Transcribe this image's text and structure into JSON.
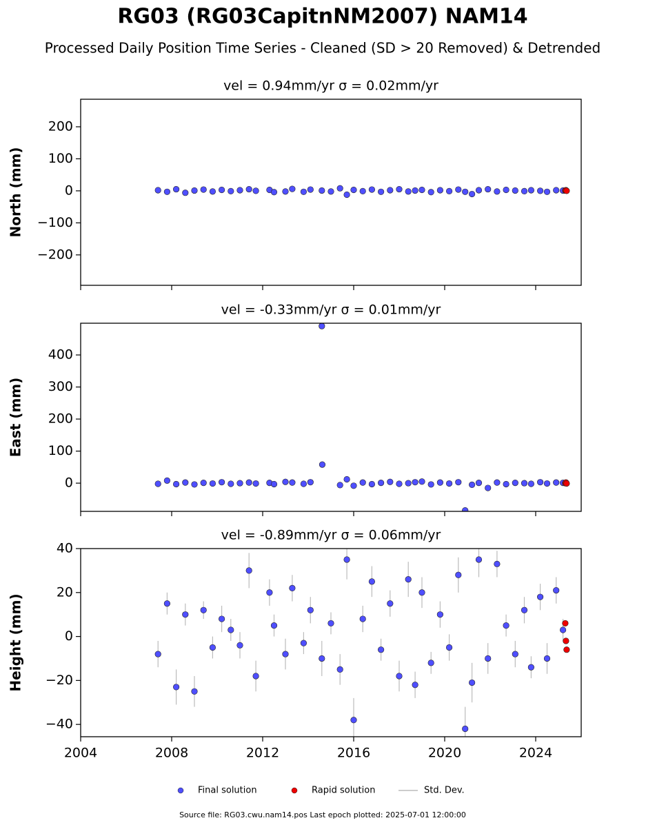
{
  "title": "RG03 (RG03CapitnNM2007) NAM14",
  "subtitle": "Processed Daily Position Time Series - Cleaned (SD > 20 Removed) & Detrended",
  "legend": [
    {
      "name": "Final solution",
      "color": "#4f4fff"
    },
    {
      "name": "Rapid solution",
      "color": "#ee0000"
    },
    {
      "name": "Std. Dev.",
      "color": "#bbbbbb"
    }
  ],
  "footer": "Source file: RG03.cwu.nam14.pos  Last epoch plotted: 2025-07-01 12:00:00",
  "chart_data": [
    {
      "type": "scatter",
      "title": "vel = 0.94mm/yr   σ = 0.02mm/yr",
      "y_label": "North (mm)",
      "xlim": [
        2004,
        2026
      ],
      "xticks": [
        2004,
        2008,
        2012,
        2016,
        2020,
        2024
      ],
      "show_xtick_labels": false,
      "ylim": [
        -295,
        286
      ],
      "yticks": [
        {
          "value": -200,
          "label": "−200"
        },
        {
          "value": -100,
          "label": "−100"
        },
        0,
        100,
        200
      ],
      "series": [
        {
          "x": [
            2007.4,
            2007.8,
            2008.2,
            2008.6,
            2009.0,
            2009.4,
            2009.8,
            2010.2,
            2010.6,
            2011.0,
            2011.4,
            2011.7,
            2012.3,
            2012.5,
            2013.0,
            2013.3,
            2013.8,
            2014.1,
            2014.6,
            2015.0,
            2015.4,
            2015.7,
            2016.0,
            2016.4,
            2016.8,
            2017.2,
            2017.6,
            2018.0,
            2018.4,
            2018.7,
            2019.0,
            2019.4,
            2019.8,
            2020.2,
            2020.6,
            2020.9,
            2021.2,
            2021.5,
            2021.9,
            2022.3,
            2022.7,
            2023.1,
            2023.5,
            2023.8,
            2024.2,
            2024.5,
            2024.9,
            2025.2
          ],
          "values": [
            2,
            -3,
            5,
            -6,
            1,
            4,
            -2,
            3,
            -1,
            2,
            5,
            0,
            3,
            -4,
            -2,
            6,
            -3,
            4,
            1,
            -2,
            8,
            -12,
            3,
            -1,
            4,
            -3,
            2,
            5,
            -2,
            1,
            3,
            -4,
            2,
            -1,
            4,
            -3,
            -10,
            2,
            5,
            -2,
            3,
            1,
            -1,
            2,
            0,
            -3,
            2,
            1
          ]
        },
        {
          "x": [
            2025.3,
            2025.33,
            2025.36
          ],
          "values": [
            1,
            2,
            0
          ]
        }
      ]
    },
    {
      "type": "scatter",
      "title": "vel = -0.33mm/yr   σ = 0.01mm/yr",
      "y_label": "East (mm)",
      "xlim": [
        2004,
        2026
      ],
      "xticks": [
        2004,
        2008,
        2012,
        2016,
        2020,
        2024
      ],
      "show_xtick_labels": false,
      "ylim": [
        -88,
        499
      ],
      "yticks": [
        0,
        100,
        200,
        300,
        400
      ],
      "series": [
        {
          "x": [
            2007.4,
            2007.8,
            2008.2,
            2008.6,
            2009.0,
            2009.4,
            2009.8,
            2010.2,
            2010.6,
            2011.0,
            2011.4,
            2011.7,
            2012.3,
            2012.5,
            2013.0,
            2013.3,
            2013.8,
            2014.1,
            2014.6,
            2014.62,
            2015.4,
            2015.7,
            2016.0,
            2016.4,
            2016.8,
            2017.2,
            2017.6,
            2018.0,
            2018.4,
            2018.7,
            2019.0,
            2019.4,
            2019.8,
            2020.2,
            2020.6,
            2020.9,
            2021.2,
            2021.5,
            2021.9,
            2022.3,
            2022.7,
            2023.1,
            2023.5,
            2023.8,
            2024.2,
            2024.5,
            2024.9,
            2025.2
          ],
          "values": [
            -2,
            8,
            -3,
            2,
            -4,
            1,
            -1,
            3,
            -2,
            0,
            2,
            -1,
            1,
            -3,
            4,
            2,
            -2,
            3,
            490,
            58,
            -6,
            12,
            -8,
            2,
            -3,
            1,
            4,
            -2,
            0,
            3,
            5,
            -4,
            2,
            -1,
            3,
            -85,
            -5,
            1,
            -15,
            2,
            -3,
            1,
            0,
            -2,
            3,
            -1,
            2,
            1
          ]
        },
        {
          "x": [
            2025.3,
            2025.33,
            2025.36
          ],
          "values": [
            0,
            2,
            -1
          ]
        }
      ]
    },
    {
      "type": "scatter",
      "title": "vel = -0.89mm/yr   σ = 0.06mm/yr",
      "y_label": "Height (mm)",
      "xlim": [
        2004,
        2026
      ],
      "xticks": [
        2004,
        2008,
        2012,
        2016,
        2020,
        2024
      ],
      "show_xtick_labels": true,
      "ylim": [
        -45.6,
        40
      ],
      "yticks": [
        {
          "value": -40,
          "label": "−40"
        },
        {
          "value": -20,
          "label": "−20"
        },
        0,
        20,
        40
      ],
      "series": [
        {
          "x": [
            2007.4,
            2007.8,
            2008.2,
            2008.6,
            2009.0,
            2009.4,
            2009.8,
            2010.2,
            2010.6,
            2011.0,
            2011.4,
            2011.7,
            2012.3,
            2012.5,
            2013.0,
            2013.3,
            2013.8,
            2014.1,
            2014.6,
            2015.0,
            2015.4,
            2015.7,
            2016.0,
            2016.4,
            2016.8,
            2017.2,
            2017.6,
            2018.0,
            2018.4,
            2018.7,
            2019.0,
            2019.4,
            2019.8,
            2020.2,
            2020.6,
            2020.9,
            2021.2,
            2021.5,
            2021.9,
            2022.3,
            2022.7,
            2023.1,
            2023.5,
            2023.8,
            2024.2,
            2024.5,
            2024.9,
            2025.2
          ],
          "values": [
            -8,
            15,
            -23,
            10,
            -25,
            12,
            -5,
            8,
            3,
            -4,
            30,
            -18,
            20,
            5,
            -8,
            22,
            -3,
            12,
            -10,
            6,
            -15,
            35,
            -38,
            8,
            25,
            -6,
            15,
            -18,
            26,
            -22,
            20,
            -12,
            10,
            -5,
            28,
            -42,
            -21,
            35,
            -10,
            33,
            5,
            -8,
            12,
            -14,
            18,
            -10,
            21,
            3
          ],
          "errors": [
            6,
            5,
            8,
            5,
            7,
            4,
            5,
            6,
            5,
            6,
            8,
            7,
            6,
            5,
            7,
            6,
            5,
            6,
            8,
            5,
            7,
            9,
            10,
            6,
            7,
            5,
            6,
            7,
            8,
            6,
            7,
            5,
            6,
            6,
            8,
            10,
            9,
            8,
            7,
            6,
            5,
            6,
            6,
            5,
            6,
            7,
            6,
            5
          ]
        },
        {
          "x": [
            2025.3,
            2025.33,
            2025.36
          ],
          "values": [
            6,
            -2,
            -6
          ]
        }
      ]
    }
  ]
}
